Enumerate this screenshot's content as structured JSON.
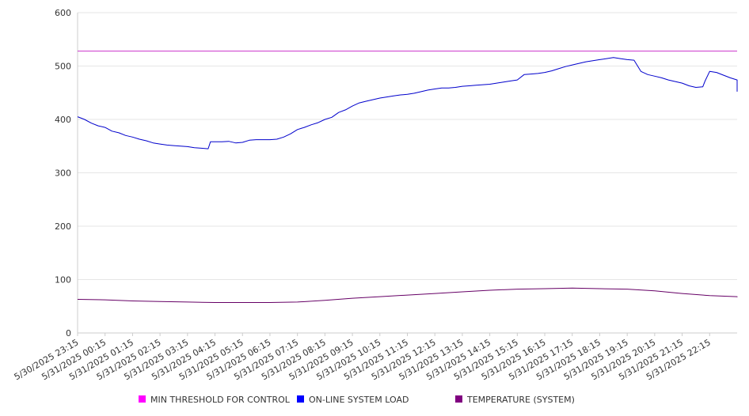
{
  "chart_data": {
    "type": "line",
    "title": "",
    "xlabel": "",
    "ylabel": "",
    "ylim": [
      0,
      600
    ],
    "yticks": [
      0,
      100,
      200,
      300,
      400,
      500,
      600
    ],
    "grid": true,
    "legend_position": "bottom",
    "x_tick_labels": [
      "5/30/2025 23:15",
      "5/31/2025 00:15",
      "5/31/2025 01:15",
      "5/31/2025 02:15",
      "5/31/2025 03:15",
      "5/31/2025 04:15",
      "5/31/2025 05:15",
      "5/31/2025 06:15",
      "5/31/2025 07:15",
      "5/31/2025 08:15",
      "5/31/2025 09:15",
      "5/31/2025 10:15",
      "5/31/2025 11:15",
      "5/31/2025 12:15",
      "5/31/2025 13:15",
      "5/31/2025 14:15",
      "5/31/2025 15:15",
      "5/31/2025 16:15",
      "5/31/2025 17:15",
      "5/31/2025 18:15",
      "5/31/2025 19:15",
      "5/31/2025 20:15",
      "5/31/2025 21:15",
      "5/31/2025 22:15"
    ],
    "x_end": "5/31/2025 23:15",
    "series": [
      {
        "name": "MIN THRESHOLD FOR CONTROL",
        "color": "#cc33cc",
        "legend_color": "#ff00ff",
        "points": [
          [
            "5/30/2025 23:15",
            528
          ],
          [
            "5/31/2025 23:15",
            528
          ]
        ]
      },
      {
        "name": "ON-LINE SYSTEM LOAD",
        "color": "#0000cc",
        "legend_color": "#0000ff",
        "points": [
          [
            "5/30/2025 23:15",
            405
          ],
          [
            "5/30/2025 23:30",
            400
          ],
          [
            "5/30/2025 23:45",
            393
          ],
          [
            "5/31/2025 00:00",
            388
          ],
          [
            "5/31/2025 00:15",
            385
          ],
          [
            "5/31/2025 00:30",
            378
          ],
          [
            "5/31/2025 00:45",
            375
          ],
          [
            "5/31/2025 01:00",
            370
          ],
          [
            "5/31/2025 01:15",
            367
          ],
          [
            "5/31/2025 01:30",
            363
          ],
          [
            "5/31/2025 01:45",
            360
          ],
          [
            "5/31/2025 02:00",
            356
          ],
          [
            "5/31/2025 02:15",
            354
          ],
          [
            "5/31/2025 02:30",
            352
          ],
          [
            "5/31/2025 02:45",
            351
          ],
          [
            "5/31/2025 03:00",
            350
          ],
          [
            "5/31/2025 03:15",
            349
          ],
          [
            "5/31/2025 03:30",
            347
          ],
          [
            "5/31/2025 03:45",
            346
          ],
          [
            "5/31/2025 04:00",
            345
          ],
          [
            "5/31/2025 04:05",
            358
          ],
          [
            "5/31/2025 04:15",
            358
          ],
          [
            "5/31/2025 04:30",
            358
          ],
          [
            "5/31/2025 04:45",
            359
          ],
          [
            "5/31/2025 05:00",
            356
          ],
          [
            "5/31/2025 05:15",
            357
          ],
          [
            "5/31/2025 05:30",
            361
          ],
          [
            "5/31/2025 05:45",
            362
          ],
          [
            "5/31/2025 06:00",
            362
          ],
          [
            "5/31/2025 06:15",
            362
          ],
          [
            "5/31/2025 06:30",
            363
          ],
          [
            "5/31/2025 06:45",
            367
          ],
          [
            "5/31/2025 07:00",
            373
          ],
          [
            "5/31/2025 07:15",
            381
          ],
          [
            "5/31/2025 07:30",
            385
          ],
          [
            "5/31/2025 07:45",
            390
          ],
          [
            "5/31/2025 08:00",
            394
          ],
          [
            "5/31/2025 08:15",
            400
          ],
          [
            "5/31/2025 08:30",
            404
          ],
          [
            "5/31/2025 08:45",
            413
          ],
          [
            "5/31/2025 09:00",
            418
          ],
          [
            "5/31/2025 09:15",
            425
          ],
          [
            "5/31/2025 09:30",
            431
          ],
          [
            "5/31/2025 09:45",
            434
          ],
          [
            "5/31/2025 10:00",
            437
          ],
          [
            "5/31/2025 10:15",
            440
          ],
          [
            "5/31/2025 10:30",
            442
          ],
          [
            "5/31/2025 10:45",
            444
          ],
          [
            "5/31/2025 11:00",
            446
          ],
          [
            "5/31/2025 11:15",
            447
          ],
          [
            "5/31/2025 11:30",
            449
          ],
          [
            "5/31/2025 11:45",
            452
          ],
          [
            "5/31/2025 12:00",
            455
          ],
          [
            "5/31/2025 12:15",
            457
          ],
          [
            "5/31/2025 12:30",
            459
          ],
          [
            "5/31/2025 12:45",
            459
          ],
          [
            "5/31/2025 13:00",
            460
          ],
          [
            "5/31/2025 13:15",
            462
          ],
          [
            "5/31/2025 13:30",
            463
          ],
          [
            "5/31/2025 13:45",
            464
          ],
          [
            "5/31/2025 14:00",
            465
          ],
          [
            "5/31/2025 14:15",
            466
          ],
          [
            "5/31/2025 14:30",
            468
          ],
          [
            "5/31/2025 14:45",
            470
          ],
          [
            "5/31/2025 15:00",
            472
          ],
          [
            "5/31/2025 15:15",
            474
          ],
          [
            "5/31/2025 15:30",
            484
          ],
          [
            "5/31/2025 15:45",
            485
          ],
          [
            "5/31/2025 16:00",
            486
          ],
          [
            "5/31/2025 16:15",
            488
          ],
          [
            "5/31/2025 16:30",
            491
          ],
          [
            "5/31/2025 16:45",
            495
          ],
          [
            "5/31/2025 17:00",
            499
          ],
          [
            "5/31/2025 17:15",
            502
          ],
          [
            "5/31/2025 17:30",
            505
          ],
          [
            "5/31/2025 17:45",
            508
          ],
          [
            "5/31/2025 18:00",
            510
          ],
          [
            "5/31/2025 18:15",
            512
          ],
          [
            "5/31/2025 18:30",
            514
          ],
          [
            "5/31/2025 18:45",
            516
          ],
          [
            "5/31/2025 19:00",
            514
          ],
          [
            "5/31/2025 19:15",
            512
          ],
          [
            "5/31/2025 19:30",
            511
          ],
          [
            "5/31/2025 19:45",
            490
          ],
          [
            "5/31/2025 20:00",
            484
          ],
          [
            "5/31/2025 20:15",
            481
          ],
          [
            "5/31/2025 20:30",
            478
          ],
          [
            "5/31/2025 20:45",
            474
          ],
          [
            "5/31/2025 21:00",
            471
          ],
          [
            "5/31/2025 21:15",
            468
          ],
          [
            "5/31/2025 21:30",
            463
          ],
          [
            "5/31/2025 21:45",
            460
          ],
          [
            "5/31/2025 22:00",
            461
          ],
          [
            "5/31/2025 22:05",
            472
          ],
          [
            "5/31/2025 22:15",
            490
          ],
          [
            "5/31/2025 22:30",
            488
          ],
          [
            "5/31/2025 22:45",
            483
          ],
          [
            "5/31/2025 23:00",
            478
          ],
          [
            "5/31/2025 23:15",
            474
          ],
          [
            "5/31/2025 23:30",
            466
          ],
          [
            "5/31/2025 23:45",
            461
          ],
          [
            "6/1/2025 00:00",
            452
          ]
        ]
      },
      {
        "name": "TEMPERATURE (SYSTEM)",
        "color": "#660066",
        "legend_color": "#800080",
        "points": [
          [
            "5/30/2025 23:15",
            63
          ],
          [
            "5/31/2025 00:15",
            62
          ],
          [
            "5/31/2025 01:15",
            60
          ],
          [
            "5/31/2025 02:15",
            59
          ],
          [
            "5/31/2025 03:15",
            58
          ],
          [
            "5/31/2025 04:15",
            57
          ],
          [
            "5/31/2025 05:15",
            57
          ],
          [
            "5/31/2025 06:15",
            57
          ],
          [
            "5/31/2025 07:15",
            58
          ],
          [
            "5/31/2025 08:15",
            61
          ],
          [
            "5/31/2025 09:15",
            65
          ],
          [
            "5/31/2025 10:15",
            68
          ],
          [
            "5/31/2025 11:15",
            71
          ],
          [
            "5/31/2025 12:15",
            74
          ],
          [
            "5/31/2025 13:15",
            77
          ],
          [
            "5/31/2025 14:15",
            80
          ],
          [
            "5/31/2025 15:15",
            82
          ],
          [
            "5/31/2025 16:15",
            83
          ],
          [
            "5/31/2025 17:15",
            84
          ],
          [
            "5/31/2025 18:15",
            83
          ],
          [
            "5/31/2025 19:15",
            82
          ],
          [
            "5/31/2025 20:15",
            79
          ],
          [
            "5/31/2025 21:15",
            74
          ],
          [
            "5/31/2025 22:15",
            70
          ],
          [
            "5/31/2025 23:15",
            68
          ],
          [
            "6/1/2025 00:00",
            67
          ]
        ]
      }
    ]
  }
}
